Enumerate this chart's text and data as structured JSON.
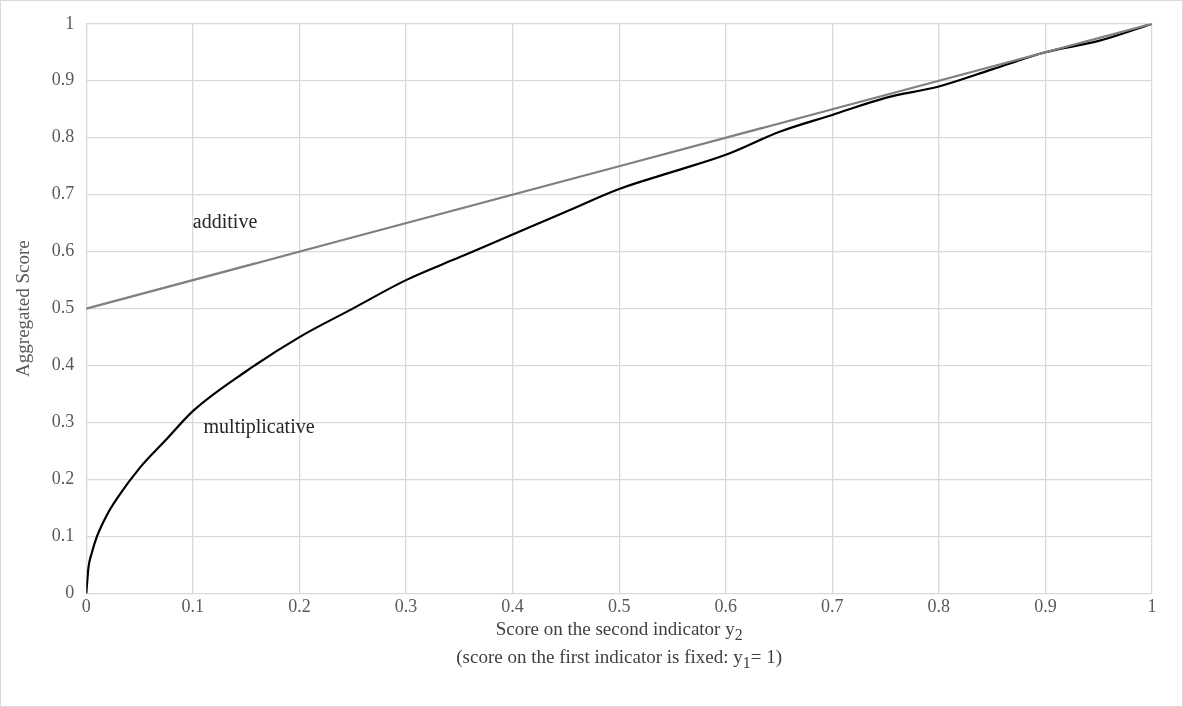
{
  "chart_data": {
    "type": "line",
    "xlabel": "Score on the second indicator y$_{2}$\n(score on the first indicator is fixed: y$_{1}$= 1)",
    "ylabel": "Aggregated Score",
    "xlim": [
      0,
      1
    ],
    "xticks": [
      0,
      0.1,
      0.2,
      0.3,
      0.4,
      0.5,
      0.6,
      0.7,
      0.8,
      0.9,
      1
    ],
    "ylim": [
      0,
      1
    ],
    "yticks": [
      0,
      0.1,
      0.2,
      0.3,
      0.4,
      0.5,
      0.6,
      0.7,
      0.8,
      0.9,
      1
    ],
    "grid": true,
    "legend": false,
    "marker": "none",
    "line_style": "solid",
    "series": [
      {
        "name": "additive",
        "color": "#808080",
        "x": [
          0,
          0.5,
          1
        ],
        "values": [
          0.5,
          0.75,
          1
        ]
      },
      {
        "name": "multiplicative",
        "color": "#000000",
        "x": [
          0,
          0.002,
          0.005,
          0.01,
          0.02,
          0.03,
          0.05,
          0.075,
          0.1,
          0.15,
          0.2,
          0.25,
          0.3,
          0.35,
          0.4,
          0.45,
          0.5,
          0.55,
          0.6,
          0.65,
          0.7,
          0.75,
          0.8,
          0.85,
          0.9,
          0.95,
          1
        ],
        "values": [
          0,
          0.045,
          0.07,
          0.1,
          0.14,
          0.17,
          0.22,
          0.27,
          0.32,
          0.39,
          0.45,
          0.5,
          0.55,
          0.59,
          0.63,
          0.67,
          0.71,
          0.74,
          0.77,
          0.81,
          0.84,
          0.87,
          0.89,
          0.92,
          0.95,
          0.97,
          1
        ]
      }
    ]
  }
}
